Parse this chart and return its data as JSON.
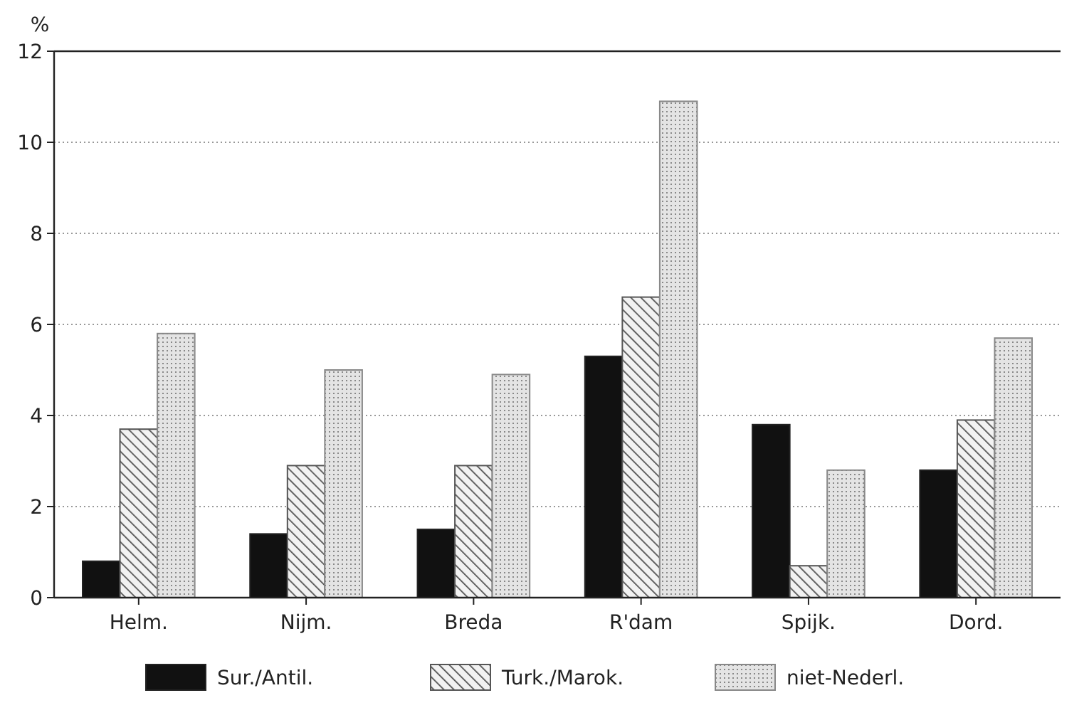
{
  "chart_data": {
    "type": "bar",
    "ylabel": "%",
    "categories": [
      "Helm.",
      "Nijm.",
      "Breda",
      "R'dam",
      "Spijk.",
      "Dord."
    ],
    "series": [
      {
        "name": "Sur./Antil.",
        "color": "#111111",
        "values": [
          0.8,
          1.4,
          1.5,
          5.3,
          3.8,
          2.8
        ]
      },
      {
        "name": "Turk./Marok.",
        "color": "#555555",
        "values": [
          3.7,
          2.9,
          2.9,
          6.6,
          0.7,
          3.9
        ]
      },
      {
        "name": "niet-Nederl.",
        "color": "#888888",
        "values": [
          5.8,
          5.0,
          4.9,
          10.9,
          2.8,
          5.7
        ]
      }
    ],
    "ylim": [
      0,
      12
    ],
    "yticks": [
      0,
      2,
      4,
      6,
      8,
      10,
      12
    ],
    "grid": "y",
    "legend": "bottom"
  }
}
